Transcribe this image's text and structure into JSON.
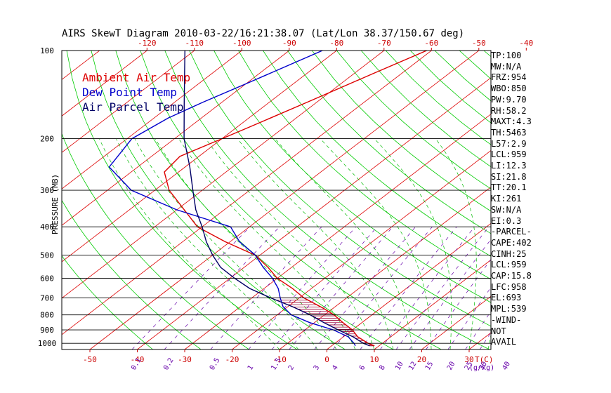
{
  "chart_data": {
    "type": "line",
    "title": "AIRS SkewT Diagram 2010-03-22/16:21:38.07 (Lat/Lon 38.37/150.67 deg)",
    "ylabel": "PRESSURE (MB)",
    "top_ticks": [
      "-120",
      "-110",
      "-100",
      "-90",
      "-80",
      "-70",
      "-60",
      "-50",
      "-40"
    ],
    "bottom_temp_ticks": [
      "-50",
      "-40",
      "-30",
      "-20",
      "-10",
      "0",
      "10",
      "20",
      "30"
    ],
    "bottom_unit_label": "T(C)",
    "mixing_ratio_ticks": [
      "0.1",
      "0.2",
      "0.5",
      "1",
      "1.5",
      "2",
      "3",
      "4",
      "6",
      "8",
      "10",
      "12",
      "15",
      "20",
      "25",
      "30",
      "40"
    ],
    "mixing_ratio_unit": "g/kg",
    "pressure_ticks": [
      "100",
      "200",
      "300",
      "400",
      "500",
      "600",
      "700",
      "800",
      "900",
      "1000"
    ],
    "ylim": [
      1050,
      100
    ],
    "series": [
      {
        "name": "Ambient Air Temp",
        "color": "#dd0000",
        "points": [
          [
            100,
            -61
          ],
          [
            120,
            -66
          ],
          [
            150,
            -72
          ],
          [
            180,
            -77
          ],
          [
            200,
            -80
          ],
          [
            230,
            -84
          ],
          [
            260,
            -83
          ],
          [
            300,
            -77
          ],
          [
            400,
            -61
          ],
          [
            450,
            -51
          ],
          [
            500,
            -41
          ],
          [
            550,
            -35
          ],
          [
            600,
            -30
          ],
          [
            650,
            -24
          ],
          [
            700,
            -19
          ],
          [
            760,
            -12
          ],
          [
            800,
            -8
          ],
          [
            850,
            -4
          ],
          [
            900,
            0
          ],
          [
            950,
            3
          ],
          [
            1000,
            7
          ],
          [
            1020,
            9
          ]
        ]
      },
      {
        "name": "Dew Point Temp",
        "color": "#0000cc",
        "points": [
          [
            100,
            -83
          ],
          [
            130,
            -90
          ],
          [
            150,
            -94
          ],
          [
            170,
            -97
          ],
          [
            200,
            -99
          ],
          [
            250,
            -96
          ],
          [
            300,
            -85
          ],
          [
            350,
            -70
          ],
          [
            400,
            -54
          ],
          [
            450,
            -48
          ],
          [
            500,
            -41
          ],
          [
            550,
            -36
          ],
          [
            600,
            -31
          ],
          [
            650,
            -27
          ],
          [
            700,
            -24
          ],
          [
            750,
            -21
          ],
          [
            800,
            -17
          ],
          [
            850,
            -11
          ],
          [
            900,
            -4
          ],
          [
            950,
            1
          ],
          [
            1000,
            4
          ],
          [
            1020,
            5
          ]
        ]
      },
      {
        "name": "Air Parcel Temp",
        "color": "#000066",
        "points": [
          [
            100,
            -112
          ],
          [
            150,
            -98
          ],
          [
            200,
            -88
          ],
          [
            250,
            -79
          ],
          [
            300,
            -72
          ],
          [
            350,
            -66
          ],
          [
            400,
            -60
          ],
          [
            450,
            -55
          ],
          [
            500,
            -50
          ],
          [
            550,
            -45
          ],
          [
            600,
            -39
          ],
          [
            650,
            -33
          ],
          [
            700,
            -26
          ],
          [
            750,
            -19
          ],
          [
            800,
            -13
          ],
          [
            850,
            -8
          ],
          [
            900,
            -3
          ],
          [
            950,
            2
          ],
          [
            1000,
            6
          ],
          [
            1020,
            8
          ]
        ]
      }
    ],
    "indices": [
      "TP:100",
      "MW:N/A",
      "FRZ:954",
      "WBO:850",
      "PW:9.70",
      "RH:58.2",
      "MAXT:4.3",
      "TH:5463",
      "L57:2.9",
      "LCL:959",
      "LI:12.3",
      "SI:21.8",
      "TT:20.1",
      "KI:261",
      "SW:N/A",
      "EI:0.3",
      "-PARCEL-",
      "CAPE:402",
      "CINH:25",
      "LCL:959",
      "CAP:15.8",
      "LFC:958",
      "EL:693",
      "MPL:539",
      "-WIND-",
      "NOT",
      "AVAIL"
    ],
    "colors": {
      "isotherm": "#dd0000",
      "dry_adiabat": "#00cc00",
      "moist_adiabat": "#00bb00",
      "mixing_ratio": "#6600aa",
      "isobar": "#000000",
      "cape_hatch": "#990033"
    }
  }
}
